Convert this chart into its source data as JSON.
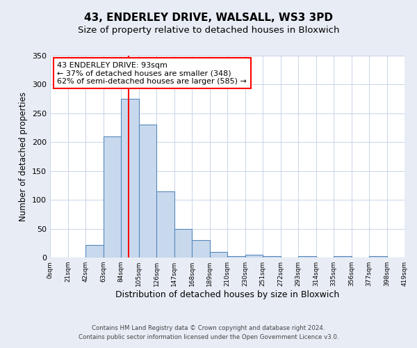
{
  "title": "43, ENDERLEY DRIVE, WALSALL, WS3 3PD",
  "subtitle": "Size of property relative to detached houses in Bloxwich",
  "xlabel": "Distribution of detached houses by size in Bloxwich",
  "ylabel": "Number of detached properties",
  "bin_edges": [
    0,
    21,
    42,
    63,
    84,
    105,
    126,
    147,
    168,
    189,
    210,
    231,
    252,
    273,
    294,
    315,
    336,
    357,
    378,
    399,
    420
  ],
  "bar_heights": [
    0,
    0,
    22,
    210,
    275,
    230,
    115,
    50,
    30,
    10,
    3,
    5,
    3,
    0,
    3,
    0,
    2,
    0,
    2,
    0
  ],
  "bar_color": "#c9d9ed",
  "bar_edgecolor": "#5588bb",
  "bar_linewidth": 0.8,
  "vline_x": 93,
  "vline_color": "red",
  "vline_linewidth": 1.5,
  "ylim": [
    0,
    350
  ],
  "yticks": [
    0,
    50,
    100,
    150,
    200,
    250,
    300,
    350
  ],
  "xtick_labels": [
    "0sqm",
    "21sqm",
    "42sqm",
    "63sqm",
    "84sqm",
    "105sqm",
    "126sqm",
    "147sqm",
    "168sqm",
    "189sqm",
    "210sqm",
    "230sqm",
    "251sqm",
    "272sqm",
    "293sqm",
    "314sqm",
    "335sqm",
    "356sqm",
    "377sqm",
    "398sqm",
    "419sqm"
  ],
  "annotation_text": "43 ENDERLEY DRIVE: 93sqm\n← 37% of detached houses are smaller (348)\n62% of semi-detached houses are larger (585) →",
  "annotation_fontsize": 8.0,
  "annotation_box_color": "white",
  "annotation_box_edgecolor": "red",
  "footer_line1": "Contains HM Land Registry data © Crown copyright and database right 2024.",
  "footer_line2": "Contains public sector information licensed under the Open Government Licence v3.0.",
  "title_fontsize": 11,
  "subtitle_fontsize": 9.5,
  "xlabel_fontsize": 9,
  "ylabel_fontsize": 8.5,
  "bg_color": "#e8edf5",
  "plot_bg_color": "white",
  "grid_color": "#c8d4e8",
  "grid_linewidth": 0.7
}
